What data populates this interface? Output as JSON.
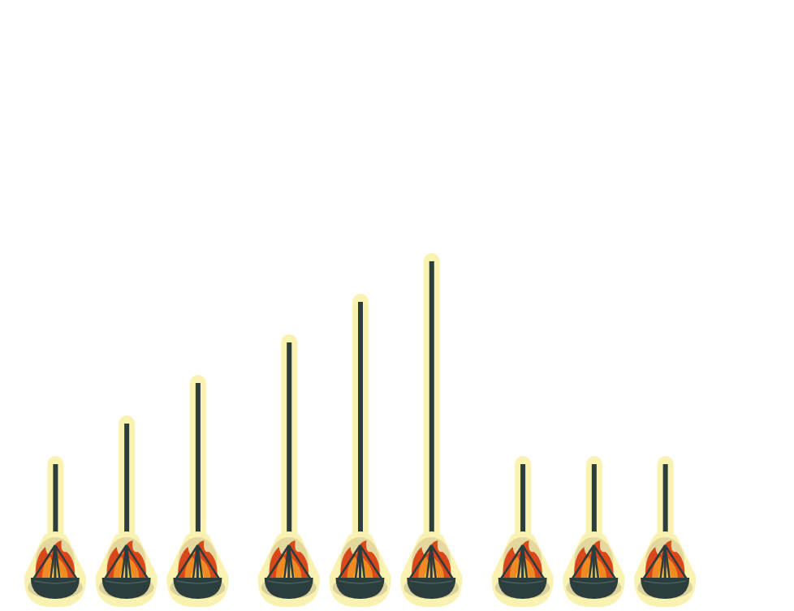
{
  "chart_data": {
    "type": "bar",
    "categories": [
      null,
      null,
      null,
      null,
      null,
      null,
      null,
      null,
      null
    ],
    "values": [
      2,
      3,
      4,
      5,
      6,
      7,
      2,
      2,
      2
    ],
    "color": "#2b3d3d",
    "ylim": [
      0,
      13
    ],
    "tick_labels": false
  }
}
